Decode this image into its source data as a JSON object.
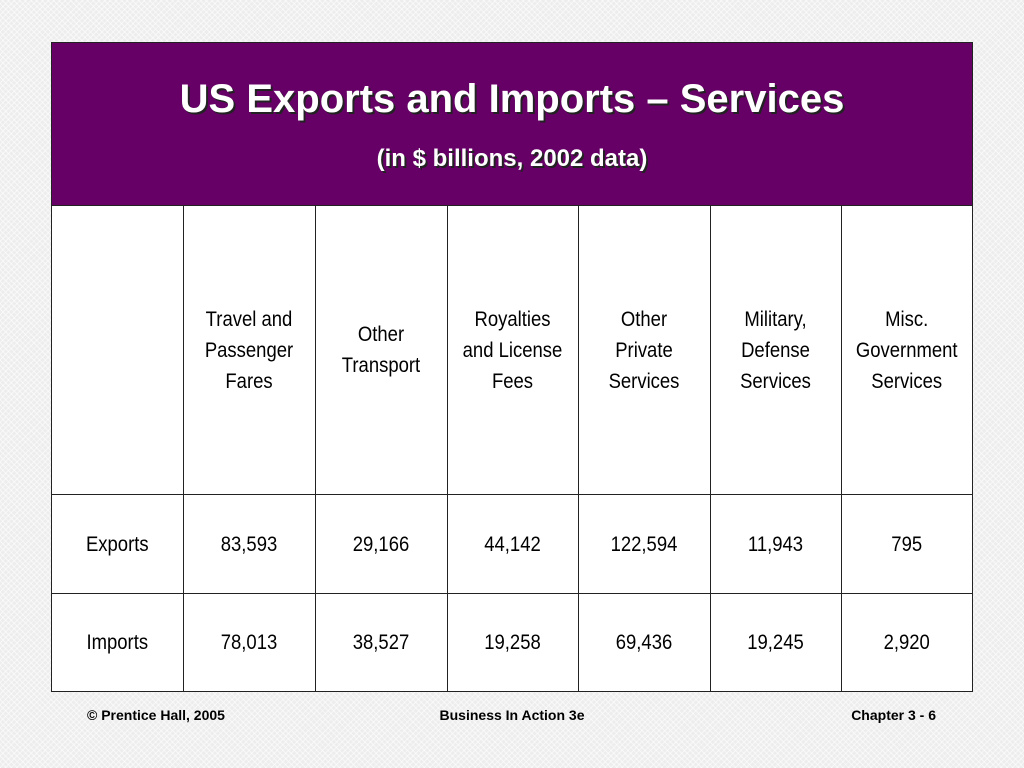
{
  "slide": {
    "title": "US Exports and Imports – Services",
    "subtitle": "(in $ billions, 2002 data)"
  },
  "table": {
    "headers": [
      "",
      "Travel and Passenger Fares",
      "Other Transport",
      "Royalties and License Fees",
      "Other Private Services",
      "Military, Defense Services",
      "Misc. Government Services"
    ],
    "rows": [
      {
        "label": "Exports",
        "values": [
          "83,593",
          "29,166",
          "44,142",
          "122,594",
          "11,943",
          "795"
        ]
      },
      {
        "label": "Imports",
        "values": [
          "78,013",
          "38,527",
          "19,258",
          "69,436",
          "19,245",
          "2,920"
        ]
      }
    ]
  },
  "footer": {
    "left": "© Prentice Hall, 2005",
    "center": "Business In Action 3e",
    "right": "Chapter 3 - 6"
  },
  "colors": {
    "title_band": "#660066",
    "title_text": "#ffffff",
    "background": "#ededed"
  }
}
